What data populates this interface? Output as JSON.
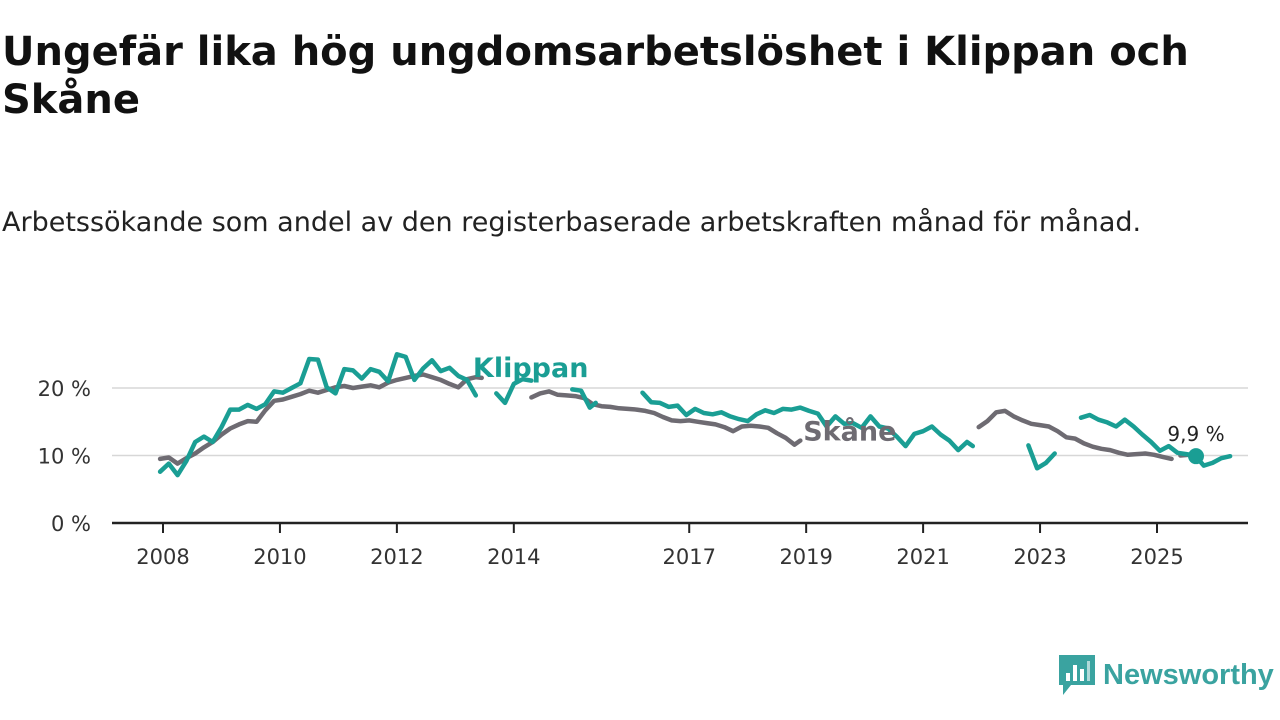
{
  "title": "Ungefär lika hög ungdomsarbetslöshet i Klippan och Skåne",
  "subtitle": "Arbetssökande som andel av den registerbaserade arbetskraften månad för månad.",
  "brand": "Newsworthy",
  "colors": {
    "klippan": "#1a9e94",
    "skane": "#6e6b72",
    "grid": "#d7d7d7",
    "axis": "#222222",
    "brand": "#3aa3a0"
  },
  "chart_data": {
    "type": "line",
    "title": "Ungefär lika hög ungdomsarbetslöshet i Klippan och Skåne",
    "xlabel": "",
    "ylabel": "",
    "xlim": [
      2007.9,
      2026.3
    ],
    "ylim": [
      0,
      20
    ],
    "yticks": [
      0,
      10,
      20
    ],
    "ytick_labels": [
      "0 %",
      "10 %",
      "20 %"
    ],
    "xticks": [
      2008,
      2010,
      2012,
      2014,
      2017,
      2019,
      2021,
      2023,
      2025
    ],
    "xtick_labels": [
      "2008",
      "2010",
      "2012",
      "2014",
      "2017",
      "2019",
      "2021",
      "2023",
      "2025"
    ],
    "end_label": "9,9 %",
    "end_point": {
      "x": 2025.7,
      "y": 9.9
    },
    "series": [
      {
        "name": "Skåne",
        "label": "Skåne",
        "label_at": {
          "x": 2018.95,
          "y": 12.2
        },
        "segments": [
          [
            [
              2007.95,
              9.5
            ],
            [
              2008.1,
              9.7
            ],
            [
              2008.25,
              8.8
            ],
            [
              2008.4,
              9.6
            ],
            [
              2008.55,
              10.3
            ],
            [
              2008.7,
              11.2
            ],
            [
              2008.85,
              12.0
            ],
            [
              2009.0,
              13.1
            ],
            [
              2009.15,
              14.0
            ],
            [
              2009.3,
              14.6
            ],
            [
              2009.45,
              15.1
            ],
            [
              2009.6,
              15.0
            ],
            [
              2009.75,
              16.7
            ],
            [
              2009.9,
              18.1
            ],
            [
              2010.05,
              18.3
            ],
            [
              2010.2,
              18.7
            ],
            [
              2010.35,
              19.1
            ],
            [
              2010.5,
              19.6
            ],
            [
              2010.65,
              19.3
            ],
            [
              2010.8,
              19.7
            ],
            [
              2010.95,
              20.1
            ],
            [
              2011.1,
              20.3
            ],
            [
              2011.25,
              20.0
            ],
            [
              2011.4,
              20.2
            ],
            [
              2011.55,
              20.4
            ],
            [
              2011.7,
              20.1
            ],
            [
              2011.85,
              20.8
            ],
            [
              2012.0,
              21.2
            ],
            [
              2012.15,
              21.5
            ],
            [
              2012.3,
              21.8
            ],
            [
              2012.45,
              22.0
            ],
            [
              2012.6,
              21.6
            ],
            [
              2012.75,
              21.2
            ],
            [
              2012.9,
              20.6
            ],
            [
              2013.05,
              20.1
            ],
            [
              2013.2,
              21.3
            ],
            [
              2013.35,
              21.6
            ],
            [
              2013.45,
              21.5
            ]
          ],
          [
            [
              2014.3,
              18.6
            ],
            [
              2014.45,
              19.2
            ],
            [
              2014.6,
              19.5
            ],
            [
              2014.75,
              19.0
            ],
            [
              2014.9,
              18.9
            ],
            [
              2015.05,
              18.8
            ],
            [
              2015.2,
              18.5
            ],
            [
              2015.35,
              17.6
            ],
            [
              2015.5,
              17.3
            ],
            [
              2015.65,
              17.2
            ],
            [
              2015.8,
              17.0
            ],
            [
              2015.95,
              16.9
            ],
            [
              2016.1,
              16.8
            ],
            [
              2016.25,
              16.6
            ],
            [
              2016.4,
              16.3
            ],
            [
              2016.55,
              15.7
            ],
            [
              2016.7,
              15.2
            ],
            [
              2016.85,
              15.1
            ],
            [
              2017.0,
              15.2
            ],
            [
              2017.15,
              15.0
            ],
            [
              2017.3,
              14.8
            ],
            [
              2017.45,
              14.6
            ],
            [
              2017.6,
              14.2
            ],
            [
              2017.75,
              13.6
            ],
            [
              2017.9,
              14.3
            ],
            [
              2018.05,
              14.4
            ],
            [
              2018.2,
              14.3
            ],
            [
              2018.35,
              14.1
            ],
            [
              2018.5,
              13.3
            ],
            [
              2018.65,
              12.6
            ],
            [
              2018.8,
              11.6
            ],
            [
              2018.9,
              12.2
            ]
          ],
          [
            [
              2021.95,
              14.2
            ],
            [
              2022.1,
              15.1
            ],
            [
              2022.25,
              16.4
            ],
            [
              2022.4,
              16.6
            ],
            [
              2022.55,
              15.8
            ],
            [
              2022.7,
              15.2
            ],
            [
              2022.85,
              14.7
            ],
            [
              2023.0,
              14.5
            ],
            [
              2023.15,
              14.3
            ],
            [
              2023.3,
              13.6
            ],
            [
              2023.45,
              12.7
            ],
            [
              2023.6,
              12.5
            ],
            [
              2023.75,
              11.8
            ],
            [
              2023.9,
              11.3
            ],
            [
              2024.05,
              11.0
            ],
            [
              2024.2,
              10.8
            ],
            [
              2024.35,
              10.4
            ],
            [
              2024.5,
              10.1
            ],
            [
              2024.65,
              10.2
            ],
            [
              2024.8,
              10.3
            ],
            [
              2024.95,
              10.1
            ],
            [
              2025.1,
              9.8
            ],
            [
              2025.25,
              9.5
            ]
          ],
          [
            [
              2025.4,
              10.0
            ],
            [
              2025.55,
              10.1
            ],
            [
              2025.7,
              9.9
            ]
          ]
        ]
      },
      {
        "name": "Klippan",
        "label": "Klippan",
        "label_at": {
          "x": 2013.3,
          "y": 21.6
        },
        "segments": [
          [
            [
              2007.95,
              7.6
            ],
            [
              2008.1,
              8.8
            ],
            [
              2008.25,
              7.1
            ],
            [
              2008.4,
              9.2
            ],
            [
              2008.55,
              12.0
            ],
            [
              2008.7,
              12.8
            ],
            [
              2008.85,
              12.0
            ],
            [
              2009.0,
              14.2
            ],
            [
              2009.15,
              16.8
            ],
            [
              2009.3,
              16.8
            ],
            [
              2009.45,
              17.5
            ],
            [
              2009.6,
              16.9
            ],
            [
              2009.75,
              17.6
            ],
            [
              2009.9,
              19.5
            ],
            [
              2010.05,
              19.3
            ],
            [
              2010.2,
              20.0
            ],
            [
              2010.35,
              20.7
            ],
            [
              2010.5,
              24.3
            ],
            [
              2010.65,
              24.2
            ],
            [
              2010.8,
              20.1
            ],
            [
              2010.95,
              19.2
            ],
            [
              2011.1,
              22.8
            ],
            [
              2011.25,
              22.6
            ],
            [
              2011.4,
              21.4
            ],
            [
              2011.55,
              22.8
            ],
            [
              2011.7,
              22.4
            ],
            [
              2011.85,
              21.0
            ],
            [
              2012.0,
              25.0
            ],
            [
              2012.15,
              24.6
            ],
            [
              2012.3,
              21.2
            ],
            [
              2012.45,
              22.9
            ],
            [
              2012.6,
              24.1
            ],
            [
              2012.75,
              22.5
            ],
            [
              2012.9,
              23.0
            ],
            [
              2013.05,
              21.8
            ],
            [
              2013.2,
              21.2
            ],
            [
              2013.35,
              18.9
            ]
          ],
          [
            [
              2013.7,
              19.2
            ],
            [
              2013.85,
              17.8
            ],
            [
              2014.0,
              20.6
            ],
            [
              2014.15,
              21.3
            ],
            [
              2014.3,
              21.1
            ]
          ],
          [
            [
              2015.0,
              19.8
            ],
            [
              2015.15,
              19.6
            ],
            [
              2015.3,
              17.1
            ],
            [
              2015.4,
              17.8
            ]
          ],
          [
            [
              2016.2,
              19.3
            ],
            [
              2016.35,
              17.9
            ],
            [
              2016.5,
              17.8
            ],
            [
              2016.65,
              17.2
            ],
            [
              2016.8,
              17.4
            ],
            [
              2016.95,
              16.0
            ],
            [
              2017.1,
              16.9
            ],
            [
              2017.25,
              16.3
            ],
            [
              2017.4,
              16.1
            ],
            [
              2017.55,
              16.4
            ],
            [
              2017.7,
              15.8
            ],
            [
              2017.85,
              15.4
            ],
            [
              2018.0,
              15.1
            ],
            [
              2018.15,
              16.1
            ],
            [
              2018.3,
              16.7
            ],
            [
              2018.45,
              16.3
            ],
            [
              2018.6,
              16.9
            ],
            [
              2018.75,
              16.8
            ],
            [
              2018.9,
              17.1
            ],
            [
              2019.05,
              16.6
            ],
            [
              2019.2,
              16.2
            ],
            [
              2019.35,
              14.3
            ],
            [
              2019.5,
              15.8
            ],
            [
              2019.65,
              14.7
            ],
            [
              2019.8,
              14.8
            ],
            [
              2019.95,
              14.1
            ],
            [
              2020.1,
              15.8
            ],
            [
              2020.25,
              14.3
            ],
            [
              2020.4,
              14.0
            ],
            [
              2020.55,
              12.8
            ],
            [
              2020.7,
              11.4
            ],
            [
              2020.85,
              13.2
            ],
            [
              2021.0,
              13.6
            ],
            [
              2021.15,
              14.3
            ],
            [
              2021.3,
              13.1
            ],
            [
              2021.45,
              12.2
            ],
            [
              2021.6,
              10.8
            ],
            [
              2021.75,
              12.0
            ],
            [
              2021.85,
              11.4
            ]
          ],
          [
            [
              2022.8,
              11.5
            ],
            [
              2022.95,
              8.1
            ],
            [
              2023.1,
              8.9
            ],
            [
              2023.25,
              10.3
            ]
          ],
          [
            [
              2023.7,
              15.6
            ],
            [
              2023.85,
              16.0
            ],
            [
              2024.0,
              15.3
            ],
            [
              2024.15,
              14.9
            ],
            [
              2024.3,
              14.3
            ],
            [
              2024.45,
              15.3
            ],
            [
              2024.6,
              14.3
            ],
            [
              2024.75,
              13.1
            ],
            [
              2024.9,
              12.0
            ],
            [
              2025.05,
              10.7
            ],
            [
              2025.2,
              11.4
            ],
            [
              2025.35,
              10.4
            ],
            [
              2025.5,
              10.2
            ],
            [
              2025.65,
              10.0
            ],
            [
              2025.8,
              8.5
            ],
            [
              2025.95,
              8.9
            ],
            [
              2026.1,
              9.6
            ],
            [
              2026.25,
              9.9
            ]
          ]
        ]
      }
    ]
  }
}
